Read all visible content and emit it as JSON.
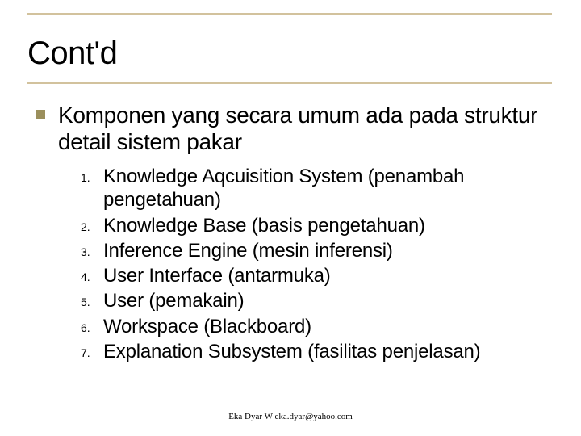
{
  "colors": {
    "background": "#ffffff",
    "border": "#d2c29d",
    "bullet": "#9b8f5c",
    "text": "#000000"
  },
  "typography": {
    "title_fontsize": 40,
    "intro_fontsize": 28,
    "item_fontsize": 24,
    "num_fontsize": 14,
    "footer_fontsize": 11,
    "font_family": "Arial"
  },
  "title": "Cont'd",
  "intro": "Komponen yang secara umum ada pada struktur detail sistem pakar",
  "items": [
    {
      "n": "1.",
      "text": "Knowledge Aqcuisition System (penambah pengetahuan)"
    },
    {
      "n": "2.",
      "text": "Knowledge Base (basis pengetahuan)"
    },
    {
      "n": "3.",
      "text": "Inference Engine (mesin inferensi)"
    },
    {
      "n": "4.",
      "text": "User Interface (antarmuka)"
    },
    {
      "n": "5.",
      "text": "User (pemakain)"
    },
    {
      "n": "6.",
      "text": "Workspace (Blackboard)"
    },
    {
      "n": "7.",
      "text": "Explanation Subsystem (fasilitas penjelasan)"
    }
  ],
  "footer": "Eka Dyar W   eka.dyar@yahoo.com"
}
